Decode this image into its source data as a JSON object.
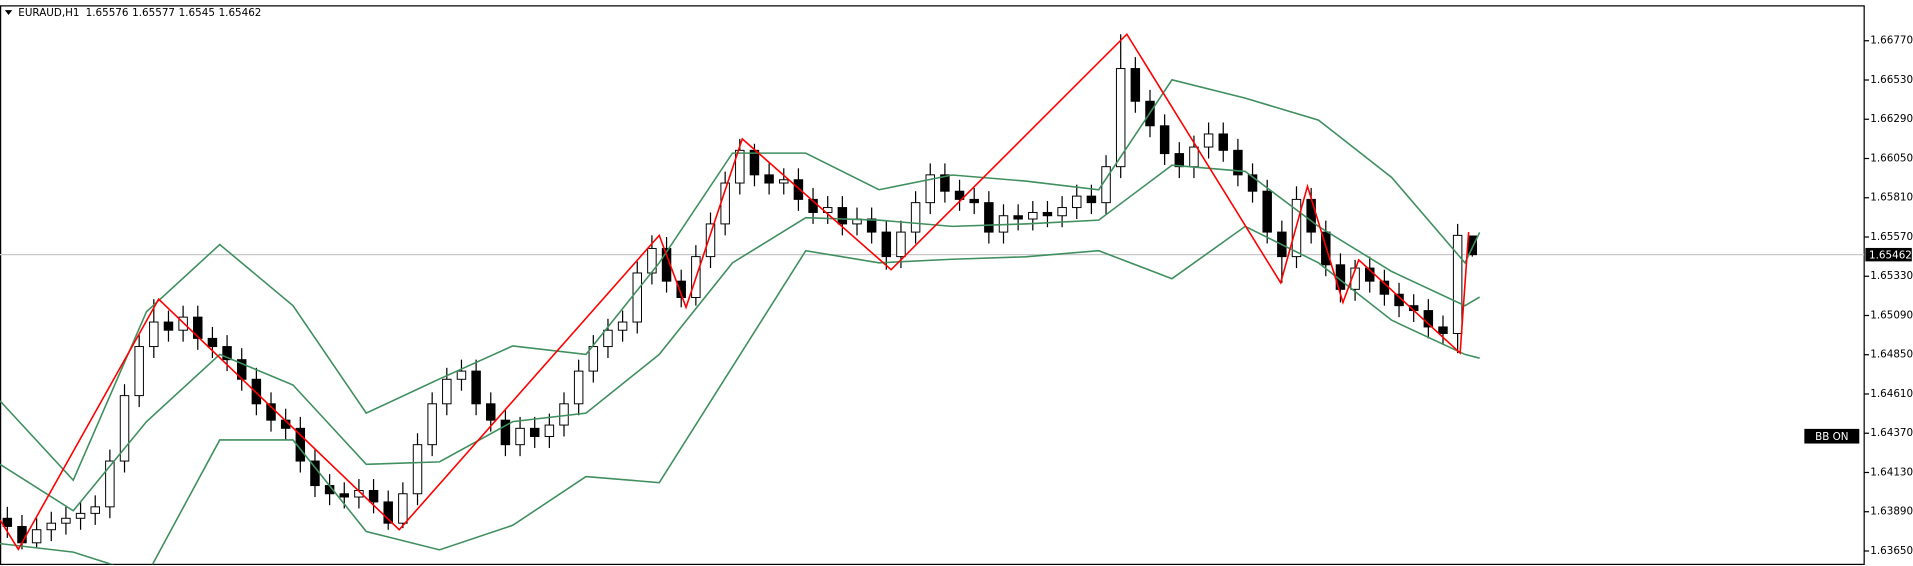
{
  "chart_data": {
    "type": "candlestick",
    "symbol": "EURAUD,H1",
    "indicator_label": "BB ON",
    "ylim": [
      1.63568,
      1.66987
    ],
    "xlim": [
      -0.5,
      126.75
    ],
    "yticks": [
      {
        "value": 1.6677,
        "label": "1.66770"
      },
      {
        "value": 1.6653,
        "label": "1.66530"
      },
      {
        "value": 1.6629,
        "label": "1.66290"
      },
      {
        "value": 1.6605,
        "label": "1.66050"
      },
      {
        "value": 1.6581,
        "label": "1.65810"
      },
      {
        "value": 1.6557,
        "label": "1.65570"
      },
      {
        "value": 1.6533,
        "label": "1.65330"
      },
      {
        "value": 1.6509,
        "label": "1.65090"
      },
      {
        "value": 1.6485,
        "label": "1.64850"
      },
      {
        "value": 1.6461,
        "label": "1.64610"
      },
      {
        "value": 1.6437,
        "label": "1.64370"
      },
      {
        "value": 1.6413,
        "label": "1.64130"
      },
      {
        "value": 1.6389,
        "label": "1.63890"
      },
      {
        "value": 1.6365,
        "label": "1.63650"
      }
    ],
    "bull_color": "#ffffff",
    "bear_color": "#000000",
    "open": [
      1.6385,
      1.638,
      1.637,
      1.6378,
      1.6382,
      1.6385,
      1.6388,
      1.6392,
      1.642,
      1.646,
      1.649,
      1.6505,
      1.65,
      1.6508,
      1.6495,
      1.649,
      1.6482,
      1.647,
      1.6455,
      1.6445,
      1.644,
      1.642,
      1.6405,
      1.64,
      1.6398,
      1.6402,
      1.6395,
      1.6382,
      1.64,
      1.643,
      1.6455,
      1.647,
      1.6475,
      1.6455,
      1.6445,
      1.643,
      1.644,
      1.6435,
      1.6442,
      1.6455,
      1.6475,
      1.649,
      1.65,
      1.6505,
      1.6535,
      1.655,
      1.653,
      1.652,
      1.6545,
      1.6565,
      1.659,
      1.661,
      1.6595,
      1.659,
      1.6592,
      1.658,
      1.6572,
      1.6575,
      1.6565,
      1.6568,
      1.656,
      1.6545,
      1.656,
      1.6578,
      1.6595,
      1.6585,
      1.658,
      1.6578,
      1.656,
      1.657,
      1.6568,
      1.6572,
      1.657,
      1.6575,
      1.6582,
      1.6578,
      1.66,
      1.666,
      1.664,
      1.6625,
      1.6608,
      1.66,
      1.6612,
      1.662,
      1.661,
      1.6595,
      1.6585,
      1.656,
      1.6545,
      1.658,
      1.656,
      1.654,
      1.6525,
      1.6538,
      1.653,
      1.6522,
      1.6515,
      1.6512,
      1.6502,
      1.6498,
      1.65576
    ],
    "high": [
      1.6392,
      1.6387,
      1.6385,
      1.6389,
      1.6392,
      1.6395,
      1.6399,
      1.6427,
      1.6467,
      1.6497,
      1.6519,
      1.6512,
      1.6515,
      1.6515,
      1.6502,
      1.6497,
      1.6489,
      1.6477,
      1.6462,
      1.6452,
      1.6447,
      1.6427,
      1.6412,
      1.6407,
      1.6409,
      1.6409,
      1.6402,
      1.6407,
      1.6437,
      1.6462,
      1.6477,
      1.6482,
      1.6482,
      1.6462,
      1.6452,
      1.6447,
      1.6447,
      1.6449,
      1.6462,
      1.6482,
      1.6497,
      1.6507,
      1.6512,
      1.6542,
      1.6558,
      1.6557,
      1.6537,
      1.6552,
      1.6572,
      1.6597,
      1.6617,
      1.6614,
      1.6602,
      1.6599,
      1.6599,
      1.6587,
      1.6582,
      1.6582,
      1.6575,
      1.6575,
      1.6567,
      1.6567,
      1.6585,
      1.6602,
      1.6602,
      1.6592,
      1.6587,
      1.6585,
      1.6577,
      1.6577,
      1.6579,
      1.6579,
      1.6582,
      1.6589,
      1.6589,
      1.6607,
      1.6681,
      1.6667,
      1.6647,
      1.6632,
      1.6615,
      1.6619,
      1.6627,
      1.6627,
      1.6617,
      1.6602,
      1.6592,
      1.6567,
      1.6588,
      1.6587,
      1.6567,
      1.6547,
      1.6543,
      1.6545,
      1.6537,
      1.6529,
      1.6522,
      1.6519,
      1.6509,
      1.6565,
      1.65577
    ],
    "low": [
      1.6373,
      1.6366,
      1.6367,
      1.6371,
      1.6375,
      1.6378,
      1.6381,
      1.6385,
      1.6413,
      1.6453,
      1.6483,
      1.6493,
      1.6493,
      1.6488,
      1.6483,
      1.6475,
      1.6463,
      1.6448,
      1.6438,
      1.6433,
      1.6413,
      1.6398,
      1.6393,
      1.6391,
      1.6391,
      1.6388,
      1.6378,
      1.6379,
      1.6393,
      1.6423,
      1.6448,
      1.6463,
      1.6448,
      1.6438,
      1.6423,
      1.6423,
      1.6428,
      1.6428,
      1.6435,
      1.6448,
      1.6468,
      1.6483,
      1.6493,
      1.6498,
      1.6528,
      1.6523,
      1.6514,
      1.6515,
      1.6538,
      1.6558,
      1.6583,
      1.6588,
      1.6583,
      1.6583,
      1.6573,
      1.6565,
      1.6565,
      1.6558,
      1.6558,
      1.6553,
      1.6537,
      1.6538,
      1.6553,
      1.6571,
      1.6578,
      1.6573,
      1.6571,
      1.6553,
      1.6553,
      1.6561,
      1.6561,
      1.6563,
      1.6563,
      1.6568,
      1.6571,
      1.6571,
      1.6593,
      1.6633,
      1.6618,
      1.6601,
      1.6593,
      1.6593,
      1.6605,
      1.6603,
      1.6588,
      1.6578,
      1.6553,
      1.6529,
      1.6538,
      1.6553,
      1.6533,
      1.6517,
      1.6518,
      1.6523,
      1.6515,
      1.6508,
      1.6505,
      1.6495,
      1.6491,
      1.6486,
      1.6545
    ],
    "close": [
      1.638,
      1.637,
      1.6378,
      1.6382,
      1.6385,
      1.6388,
      1.6392,
      1.642,
      1.646,
      1.649,
      1.6505,
      1.65,
      1.6508,
      1.6495,
      1.649,
      1.6482,
      1.647,
      1.6455,
      1.6445,
      1.644,
      1.642,
      1.6405,
      1.64,
      1.6398,
      1.6402,
      1.6395,
      1.6382,
      1.64,
      1.643,
      1.6455,
      1.647,
      1.6475,
      1.6455,
      1.6445,
      1.643,
      1.644,
      1.6435,
      1.6442,
      1.6455,
      1.6475,
      1.649,
      1.65,
      1.6505,
      1.6535,
      1.655,
      1.653,
      1.652,
      1.6545,
      1.6565,
      1.659,
      1.661,
      1.6595,
      1.659,
      1.6592,
      1.658,
      1.6572,
      1.6575,
      1.6565,
      1.6568,
      1.656,
      1.6545,
      1.656,
      1.6578,
      1.6595,
      1.6585,
      1.658,
      1.6578,
      1.656,
      1.657,
      1.6568,
      1.6572,
      1.657,
      1.6575,
      1.6582,
      1.6578,
      1.66,
      1.666,
      1.664,
      1.6625,
      1.6608,
      1.66,
      1.6612,
      1.662,
      1.661,
      1.6595,
      1.6585,
      1.656,
      1.6545,
      1.658,
      1.656,
      1.654,
      1.6525,
      1.6538,
      1.653,
      1.6522,
      1.6515,
      1.6512,
      1.6502,
      1.6498,
      1.6558,
      1.65462
    ],
    "lines": [
      {
        "color": "#3f8f5f",
        "x": [
          -0.5,
          4.5,
          9.5,
          14.5,
          19.5,
          24.5,
          29.5,
          34.5,
          39.5,
          44.5,
          49.5,
          54.5,
          59.5,
          64.5,
          69.5,
          74.5,
          79.5,
          84.5,
          89.5,
          94.5,
          99.5,
          100.5
        ],
        "values": [
          1.64568,
          1.64083,
          1.65113,
          1.65524,
          1.6515,
          1.64493,
          1.64702,
          1.64904,
          1.64852,
          1.65412,
          1.66083,
          1.66083,
          1.65859,
          1.65949,
          1.65912,
          1.65859,
          1.66531,
          1.66419,
          1.66285,
          1.65934,
          1.65412,
          1.65598
        ]
      },
      {
        "color": "#3f8f5f",
        "x": [
          -0.5,
          4.5,
          9.5,
          14.5,
          19.5,
          24.5,
          29.5,
          34.5,
          39.5,
          44.5,
          49.5,
          54.5,
          59.5,
          64.5,
          69.5,
          74.5,
          79.5,
          84.5,
          89.5,
          94.5,
          99.5,
          100.5
        ],
        "values": [
          1.6418,
          1.63896,
          1.64441,
          1.64852,
          1.64665,
          1.6418,
          1.64195,
          1.64441,
          1.64493,
          1.64852,
          1.65412,
          1.65688,
          1.65673,
          1.65635,
          1.6565,
          1.65673,
          1.66009,
          1.65971,
          1.65635,
          1.65359,
          1.6515,
          1.65203
        ]
      },
      {
        "color": "#3f8f5f",
        "x": [
          -0.5,
          4.5,
          9.5,
          14.5,
          19.5,
          24.5,
          29.5,
          34.5,
          39.5,
          44.5,
          49.5,
          54.5,
          59.5,
          64.5,
          69.5,
          74.5,
          79.5,
          84.5,
          89.5,
          94.5,
          99.5,
          100.5
        ],
        "values": [
          1.63695,
          1.63643,
          1.635,
          1.64329,
          1.64329,
          1.63769,
          1.63657,
          1.63807,
          1.64105,
          1.64068,
          1.64777,
          1.65486,
          1.65412,
          1.65434,
          1.65449,
          1.65486,
          1.65315,
          1.65635,
          1.65412,
          1.65061,
          1.64852,
          1.64829
        ]
      },
      {
        "color": "#ff0000",
        "x": [
          -0.5,
          0.75,
          10.33,
          26.75,
          44.5,
          46.33,
          50.17,
          60.33,
          76.42,
          86.92,
          88.75,
          91.17,
          92.25,
          99.17,
          99.75
        ],
        "values": [
          1.6384,
          1.6366,
          1.6519,
          1.6378,
          1.6558,
          1.6514,
          1.6617,
          1.6537,
          1.6681,
          1.6529,
          1.6588,
          1.6517,
          1.6543,
          1.6486,
          1.656
        ]
      }
    ]
  }
}
